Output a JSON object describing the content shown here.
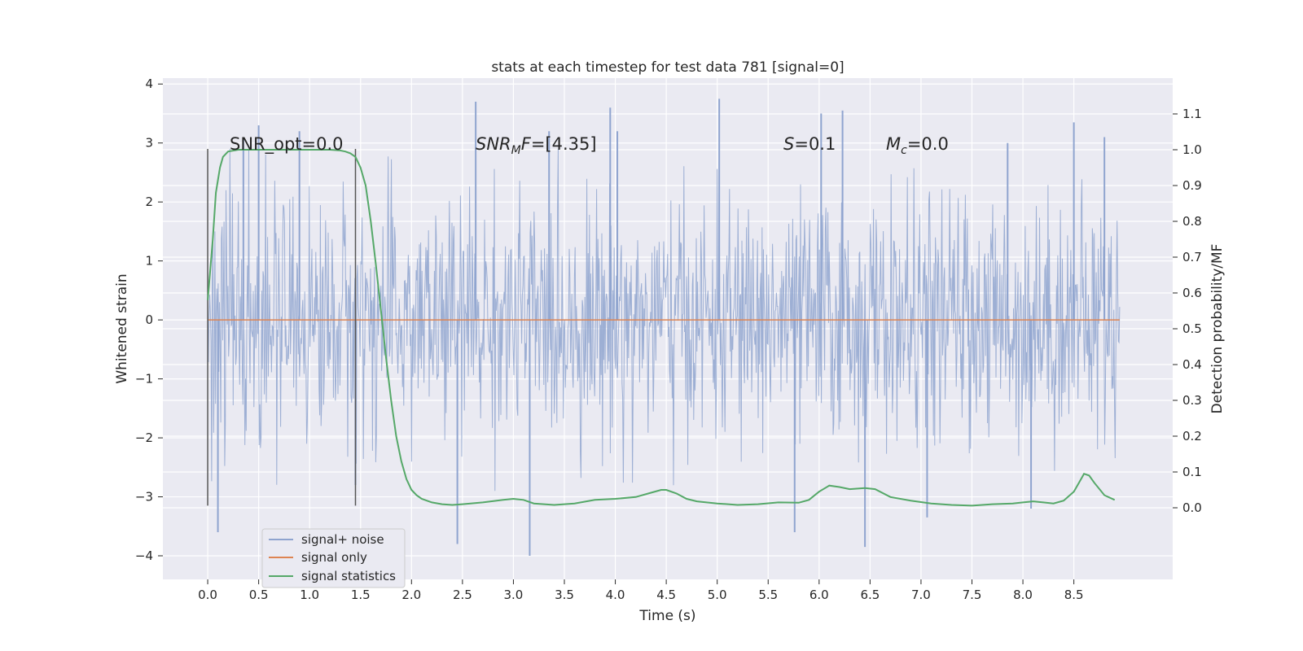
{
  "chart_data": {
    "type": "line",
    "title": "stats at each timestep for test data 781 [signal=0]",
    "xlabel": "Time (s)",
    "ylabel": "Whitened strain",
    "y2label": "Detection probability/MF",
    "xlim": [
      -0.44,
      9.47
    ],
    "ylim": [
      -4.4,
      4.1
    ],
    "y2lim": [
      -0.2,
      1.2
    ],
    "xticks": [
      "0.0",
      "0.5",
      "1.0",
      "1.5",
      "2.0",
      "2.5",
      "3.0",
      "3.5",
      "4.0",
      "4.5",
      "5.0",
      "5.5",
      "6.0",
      "6.5",
      "7.0",
      "7.5",
      "8.0",
      "8.5"
    ],
    "yticks": [
      "4",
      "3",
      "2",
      "1",
      "0",
      "−1",
      "−2",
      "−3",
      "−4"
    ],
    "y2ticks": [
      "1.1",
      "1.0",
      "0.9",
      "0.8",
      "0.7",
      "0.6",
      "0.5",
      "0.4",
      "0.3",
      "0.2",
      "0.1",
      "0.0"
    ],
    "legend_position": "lower-left",
    "colors": {
      "signal_noise": "#8fa4cf",
      "signal_only": "#dd8452",
      "statistics": "#55a868",
      "panel_bg": "#eaeaf2",
      "grid": "#ffffff",
      "vline": "#555555"
    },
    "series": [
      {
        "name": "signal+ noise",
        "description": "whitened strain noise, roughly gaussian, sigma about 1, time 0 to 8.95 s",
        "x_range": [
          0.0,
          8.95
        ],
        "spike_times": [
          0.1,
          0.35,
          0.5,
          0.9,
          1.45,
          2.45,
          2.63,
          3.16,
          3.35,
          3.95,
          4.02,
          5.02,
          5.76,
          6.02,
          6.23,
          6.45,
          7.06,
          7.85,
          8.08,
          8.5,
          8.8
        ],
        "spike_values": [
          -3.6,
          3.1,
          3.3,
          3.2,
          -2.8,
          -3.8,
          3.7,
          -4.0,
          3.2,
          3.6,
          3.2,
          3.75,
          -3.6,
          3.5,
          3.55,
          -3.85,
          -3.35,
          3.0,
          -3.2,
          3.35,
          3.1
        ]
      },
      {
        "name": "signal only",
        "x": [
          0.0,
          8.95
        ],
        "y": [
          0.0,
          0.0
        ]
      },
      {
        "name": "signal statistics",
        "axis": "right",
        "x": [
          0.0,
          0.05,
          0.08,
          0.12,
          0.15,
          0.2,
          0.3,
          0.5,
          0.8,
          1.0,
          1.2,
          1.3,
          1.35,
          1.4,
          1.45,
          1.5,
          1.55,
          1.6,
          1.65,
          1.7,
          1.75,
          1.8,
          1.85,
          1.9,
          1.95,
          2.0,
          2.05,
          2.1,
          2.2,
          2.3,
          2.4,
          2.5,
          2.7,
          2.9,
          3.0,
          3.1,
          3.2,
          3.4,
          3.6,
          3.8,
          4.0,
          4.2,
          4.35,
          4.45,
          4.5,
          4.6,
          4.7,
          4.8,
          5.0,
          5.2,
          5.4,
          5.6,
          5.8,
          5.9,
          6.0,
          6.1,
          6.2,
          6.3,
          6.45,
          6.55,
          6.7,
          6.9,
          7.1,
          7.3,
          7.5,
          7.7,
          7.9,
          8.0,
          8.1,
          8.2,
          8.3,
          8.4,
          8.5,
          8.55,
          8.6,
          8.65,
          8.7,
          8.8,
          8.9
        ],
        "y": [
          0.58,
          0.75,
          0.88,
          0.95,
          0.98,
          0.995,
          1.0,
          1.0,
          1.0,
          1.0,
          1.0,
          0.998,
          0.995,
          0.99,
          0.98,
          0.95,
          0.9,
          0.8,
          0.68,
          0.55,
          0.42,
          0.3,
          0.2,
          0.13,
          0.08,
          0.05,
          0.035,
          0.025,
          0.015,
          0.01,
          0.008,
          0.01,
          0.015,
          0.022,
          0.025,
          0.022,
          0.012,
          0.008,
          0.012,
          0.022,
          0.025,
          0.03,
          0.042,
          0.05,
          0.05,
          0.04,
          0.025,
          0.018,
          0.012,
          0.008,
          0.01,
          0.015,
          0.014,
          0.022,
          0.045,
          0.062,
          0.058,
          0.052,
          0.055,
          0.052,
          0.03,
          0.02,
          0.012,
          0.008,
          0.006,
          0.01,
          0.012,
          0.015,
          0.018,
          0.015,
          0.012,
          0.02,
          0.045,
          0.07,
          0.095,
          0.09,
          0.07,
          0.035,
          0.022
        ]
      }
    ],
    "vertical_lines": [
      {
        "x": 0.0,
        "y_range": [
          -3.15,
          2.9
        ]
      },
      {
        "x": 1.45,
        "y_range": [
          -3.15,
          2.9
        ]
      }
    ],
    "annotations": [
      {
        "text": "SNR_opt=0.0",
        "x": 0.2,
        "y": 3.0
      },
      {
        "text": "=[4.35]",
        "x": 2.6,
        "y": 3.0,
        "math_prefix": "SNR",
        "math_sub": "M",
        "math_suffix": "F"
      },
      {
        "text": "=0.1",
        "x": 5.6,
        "y": 3.0,
        "math_prefix": "S",
        "math_sub": "",
        "math_suffix": ""
      },
      {
        "text": "=0.0",
        "x": 6.6,
        "y": 3.0,
        "math_prefix": "M",
        "math_sub": "c",
        "math_suffix": ""
      }
    ]
  }
}
